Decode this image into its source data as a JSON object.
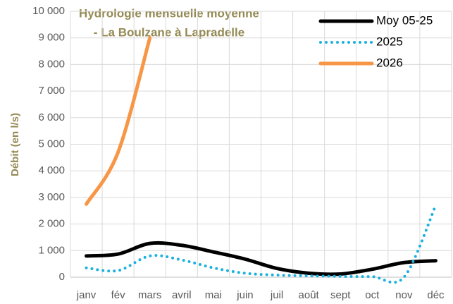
{
  "chart_data": {
    "type": "line",
    "title": [
      "Hydrologie mensuelle moyenne",
      "- La Boulzane à Lapradelle"
    ],
    "ylabel": "Débit (en l/s)",
    "categories": [
      "janv",
      "fév",
      "mars",
      "avril",
      "mai",
      "juin",
      "juil",
      "août",
      "sept",
      "oct",
      "nov",
      "déc"
    ],
    "series": [
      {
        "name": "Moy 05-25",
        "color": "#000000",
        "style": "solid",
        "values": [
          800,
          870,
          1270,
          1200,
          950,
          680,
          330,
          150,
          120,
          300,
          550,
          620
        ]
      },
      {
        "name": "2025",
        "color": "#1ab0e0",
        "style": "dotted",
        "values": [
          350,
          250,
          800,
          650,
          350,
          150,
          80,
          50,
          30,
          20,
          0,
          2700
        ]
      },
      {
        "name": "2026",
        "color": "#f79646",
        "style": "solid",
        "values": [
          2750,
          4700,
          9000,
          null,
          null,
          null,
          null,
          null,
          null,
          null,
          null,
          null
        ]
      }
    ],
    "ylim": [
      0,
      10000
    ],
    "yticks": [
      0,
      {
        "value": 1000,
        "label": "1 000"
      },
      {
        "value": 2000,
        "label": "2 000"
      },
      {
        "value": 3000,
        "label": "3 000"
      },
      {
        "value": 4000,
        "label": "4 000"
      },
      {
        "value": 5000,
        "label": "5 000"
      },
      {
        "value": 6000,
        "label": "6 000"
      },
      {
        "value": 7000,
        "label": "7 000"
      },
      {
        "value": 8000,
        "label": "8 000"
      },
      {
        "value": 9000,
        "label": "9 000"
      },
      {
        "value": 10000,
        "label": "10 000"
      }
    ],
    "grid": true,
    "legend": "top-right"
  }
}
